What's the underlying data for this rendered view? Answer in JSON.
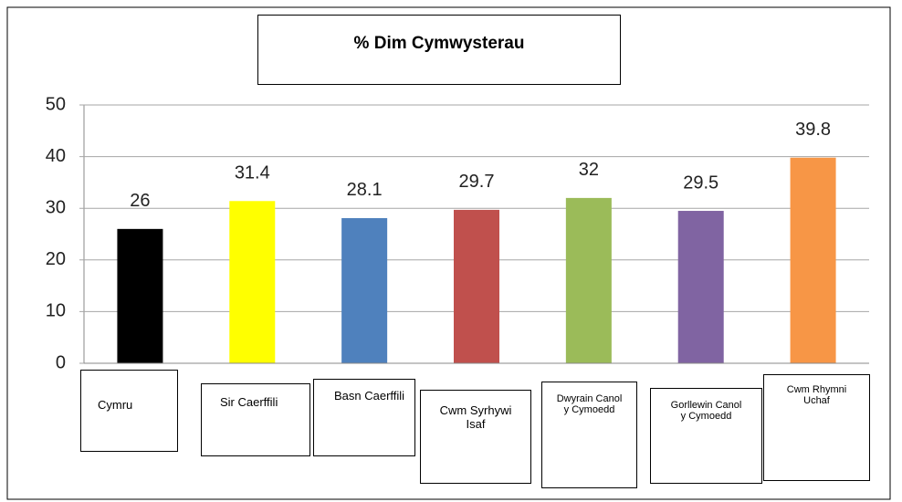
{
  "chart_data": {
    "type": "bar",
    "title": "% Dim Cymwysterau",
    "categories": [
      "Cymru",
      "Sir Caerffili",
      "Basn Caerffili",
      "Cwm Syrhywi Isaf",
      "Dwyrain Canol y Cymoedd",
      "Gorllewin Canol y Cymoedd",
      "Cwm Rhymni Uchaf"
    ],
    "values": [
      26,
      31.4,
      28.1,
      29.7,
      32,
      29.5,
      39.8
    ],
    "colors": [
      "#000000",
      "#ffff00",
      "#4f81bd",
      "#c0504d",
      "#9bbb59",
      "#8064a2",
      "#f79646"
    ],
    "ylim": [
      0,
      50
    ],
    "yticks": [
      0,
      10,
      20,
      30,
      40,
      50
    ],
    "grid": true
  }
}
